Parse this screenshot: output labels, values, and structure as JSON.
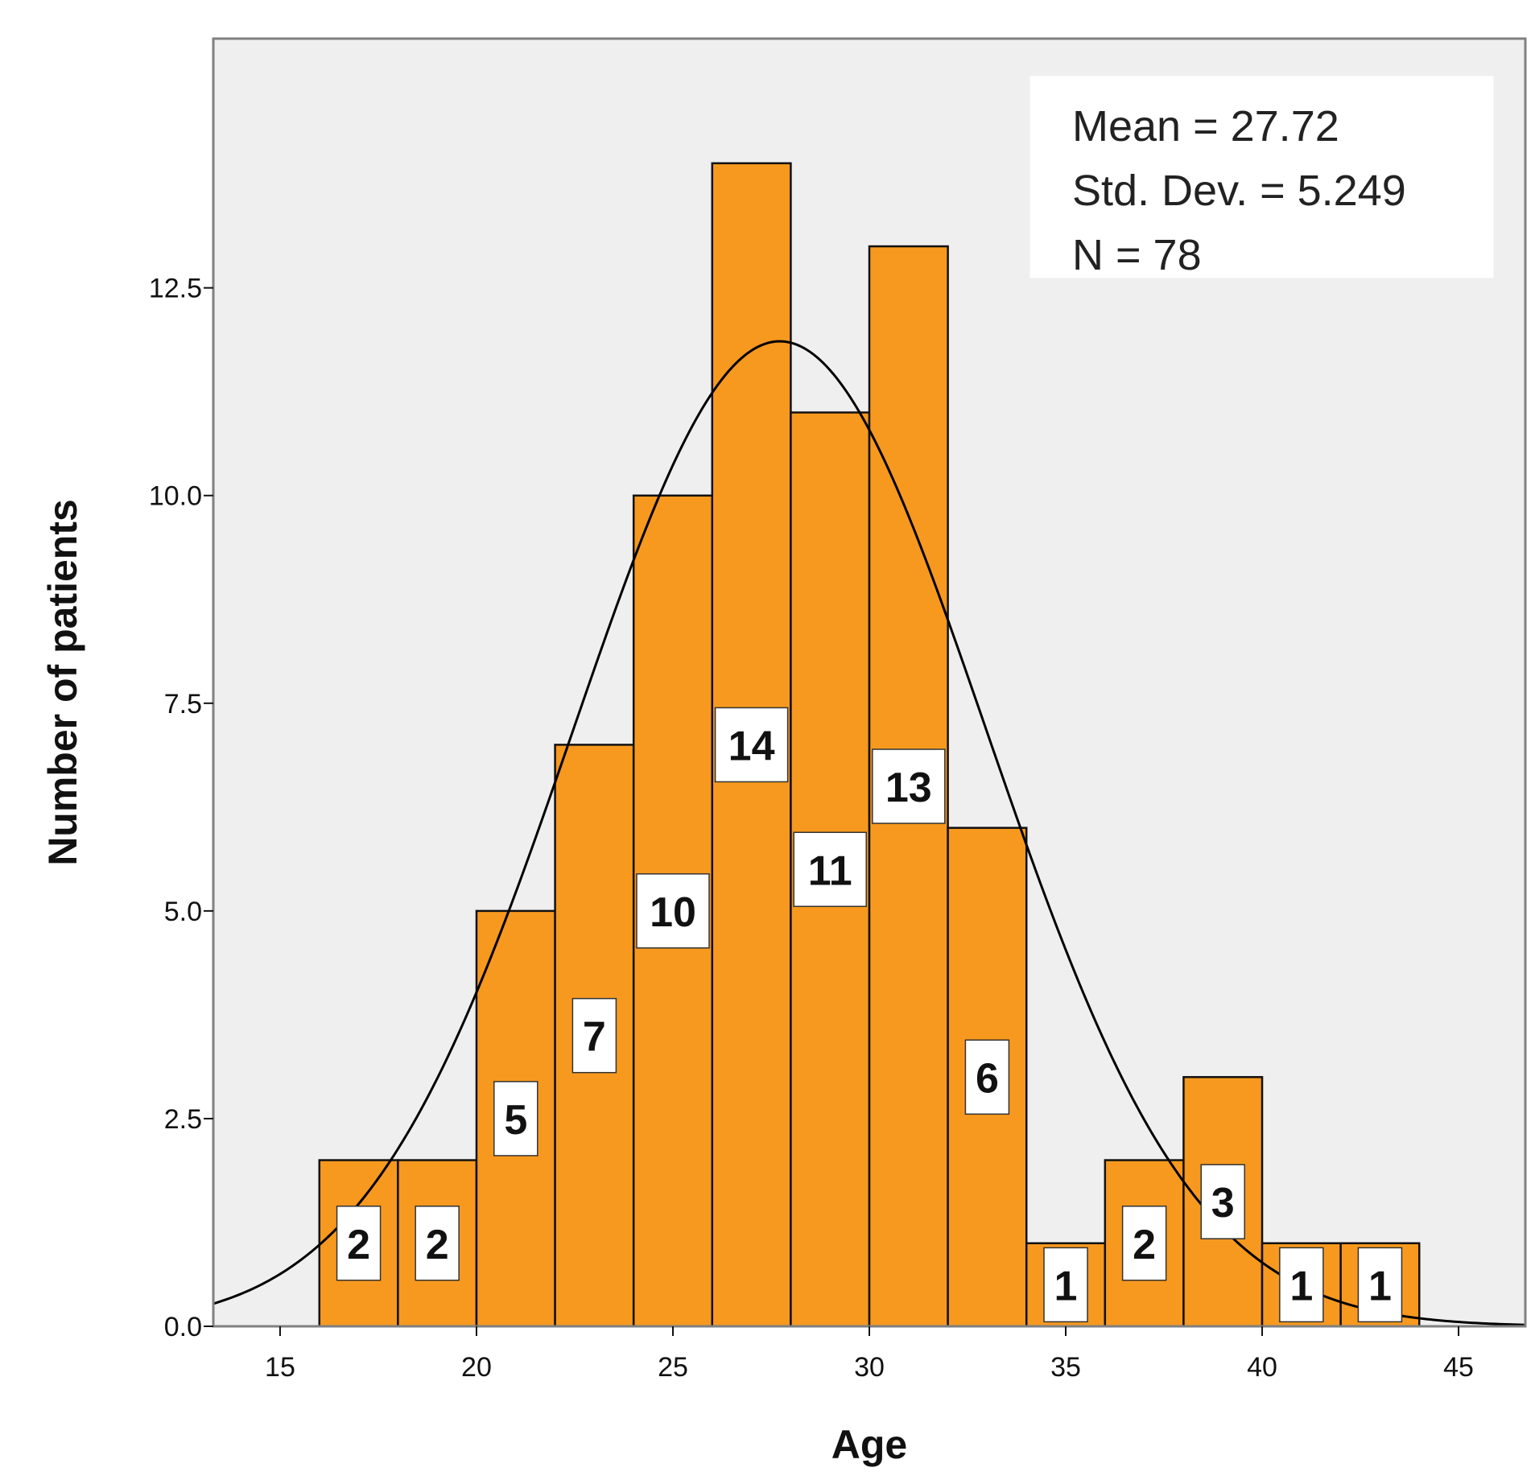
{
  "chart_data": {
    "type": "bar",
    "subtype": "histogram",
    "title": "",
    "xlabel": "Age",
    "ylabel": "Number of patients",
    "xlim": [
      13.3,
      46.7
    ],
    "ylim": [
      0,
      15.5
    ],
    "xticks": [
      15,
      20,
      25,
      30,
      35,
      40,
      45
    ],
    "xtick_labels": [
      "15",
      "20",
      "25",
      "30",
      "35",
      "40",
      "45"
    ],
    "yticks": [
      0,
      2.5,
      5,
      7.5,
      10,
      12.5
    ],
    "ytick_labels": [
      "0.0",
      "2.5",
      "5.0",
      "7.5",
      "10.0",
      "12.5"
    ],
    "grid": false,
    "bin_width": 2,
    "bins": [
      {
        "start": 16,
        "end": 18,
        "value": 2,
        "label": "2"
      },
      {
        "start": 18,
        "end": 20,
        "value": 2,
        "label": "2"
      },
      {
        "start": 20,
        "end": 22,
        "value": 5,
        "label": "5"
      },
      {
        "start": 22,
        "end": 24,
        "value": 7,
        "label": "7"
      },
      {
        "start": 24,
        "end": 26,
        "value": 10,
        "label": "10"
      },
      {
        "start": 26,
        "end": 28,
        "value": 14,
        "label": "14"
      },
      {
        "start": 28,
        "end": 30,
        "value": 11,
        "label": "11"
      },
      {
        "start": 30,
        "end": 32,
        "value": 13,
        "label": "13"
      },
      {
        "start": 32,
        "end": 34,
        "value": 6,
        "label": "6"
      },
      {
        "start": 34,
        "end": 36,
        "value": 1,
        "label": "1"
      },
      {
        "start": 36,
        "end": 38,
        "value": 2,
        "label": "2"
      },
      {
        "start": 38,
        "end": 40,
        "value": 3,
        "label": "3"
      },
      {
        "start": 40,
        "end": 42,
        "value": 1,
        "label": "1"
      },
      {
        "start": 42,
        "end": 44,
        "value": 1,
        "label": "1"
      }
    ],
    "normal_curve": {
      "mean": 27.72,
      "std": 5.249,
      "n": 78,
      "bin_width": 2
    },
    "stats_box": {
      "lines": [
        "Mean = 27.72",
        "Std. Dev. = 5.249",
        "N = 78"
      ],
      "position": "top-right"
    },
    "colors": {
      "bar_fill": "#F7991F",
      "bar_stroke": "#111111",
      "plot_background": "#EFEFEF",
      "frame": "#808080",
      "curve": "#000000",
      "label_box": "#FFFFFF",
      "stats_box": "#FFFFFF"
    }
  }
}
